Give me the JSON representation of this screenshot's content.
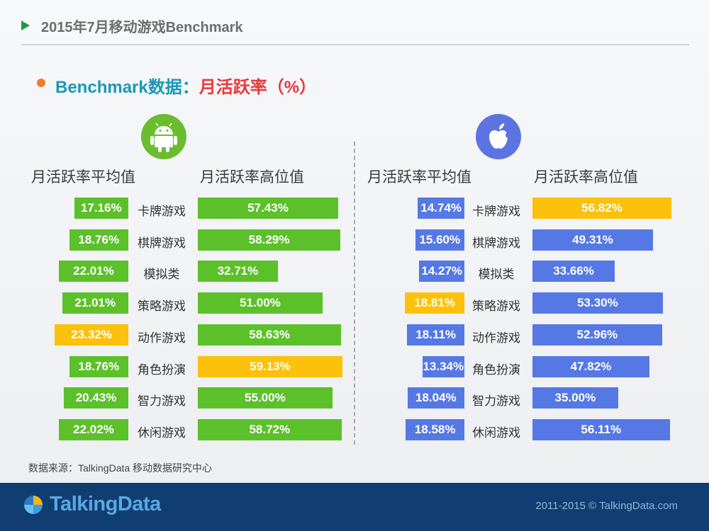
{
  "header": {
    "title": "2015年7月移动游戏Benchmark"
  },
  "subtitle": {
    "left": "Benchmark数据：",
    "right": "月活跃率（%）"
  },
  "columns": {
    "avg": "月活跃率平均值",
    "high": "月活跃率高位值"
  },
  "icons": {
    "android": "android-icon",
    "apple": "apple-icon",
    "logo": "talkingdata-logo-icon"
  },
  "colors": {
    "android": "#5cc02a",
    "ios": "#5678e5",
    "highlight": "#fcc10b"
  },
  "chart_data": [
    {
      "type": "bar",
      "platform": "android",
      "categories": [
        "卡牌游戏",
        "棋牌游戏",
        "模拟类",
        "策略游戏",
        "动作游戏",
        "角色扮演",
        "智力游戏",
        "休闲游戏"
      ],
      "series": [
        {
          "name": "月活跃率平均值",
          "values": [
            17.16,
            18.76,
            22.01,
            21.01,
            23.32,
            18.76,
            20.43,
            22.02
          ],
          "labels": [
            "17.16%",
            "18.76%",
            "22.01%",
            "21.01%",
            "23.32%",
            "18.76%",
            "20.43%",
            "22.02%"
          ],
          "highlight_index": 4
        },
        {
          "name": "月活跃率高位值",
          "values": [
            57.43,
            58.29,
            32.71,
            51.0,
            58.63,
            59.13,
            55.0,
            58.72
          ],
          "labels": [
            "57.43%",
            "58.29%",
            "32.71%",
            "51.00%",
            "58.63%",
            "59.13%",
            "55.00%",
            "58.72%"
          ],
          "highlight_index": 5
        }
      ]
    },
    {
      "type": "bar",
      "platform": "ios",
      "categories": [
        "卡牌游戏",
        "棋牌游戏",
        "模拟类",
        "策略游戏",
        "动作游戏",
        "角色扮演",
        "智力游戏",
        "休闲游戏"
      ],
      "series": [
        {
          "name": "月活跃率平均值",
          "values": [
            14.74,
            15.6,
            14.27,
            18.81,
            18.11,
            13.34,
            18.04,
            18.58
          ],
          "labels": [
            "14.74%",
            "15.60%",
            "14.27%",
            "18.81%",
            "18.11%",
            "13.34%",
            "18.04%",
            "18.58%"
          ],
          "highlight_index": 3
        },
        {
          "name": "月活跃率高位值",
          "values": [
            56.82,
            49.31,
            33.66,
            53.3,
            52.96,
            47.82,
            35.0,
            56.11
          ],
          "labels": [
            "56.82%",
            "49.31%",
            "33.66%",
            "53.30%",
            "52.96%",
            "47.82%",
            "35.00%",
            "56.11%"
          ],
          "highlight_index": 0
        }
      ]
    }
  ],
  "source": "数据来源：TalkingData 移动数据研究中心",
  "footer": {
    "logo_text": "TalkingData",
    "copyright": "2011-2015 © TalkingData.com"
  }
}
